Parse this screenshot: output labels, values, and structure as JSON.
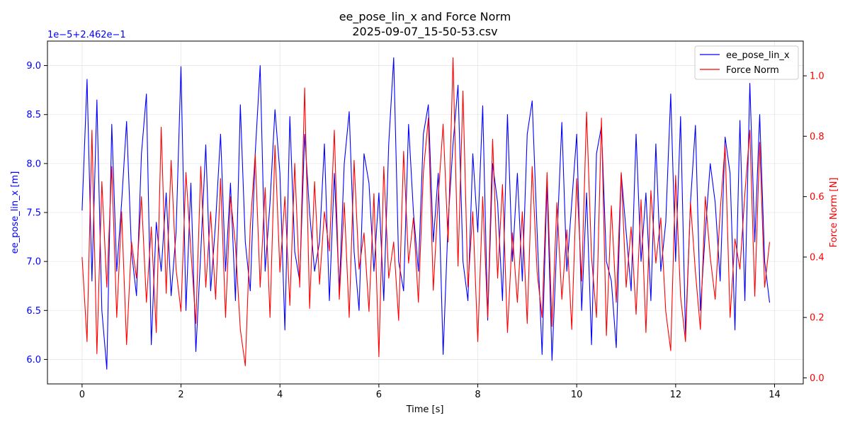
{
  "chart_data": {
    "type": "line",
    "title": "ee_pose_lin_x and Force Norm",
    "subtitle": "2025-09-07_15-50-53.csv",
    "xlabel": "Time [s]",
    "ylabel_left": "ee_pose_lin_x [m]",
    "ylabel_right": "Force Norm [N]",
    "left_axis_offset_text": "1e−5+2.462e−1",
    "xlim": [
      -0.7,
      14.58
    ],
    "ylim_left": [
      5.75,
      9.25
    ],
    "ylim_right": [
      -0.02,
      1.115
    ],
    "x_ticks": [
      0,
      2,
      4,
      6,
      8,
      10,
      12,
      14
    ],
    "x_tick_labels": [
      "0",
      "2",
      "4",
      "6",
      "8",
      "10",
      "12",
      "14"
    ],
    "y_left_ticks": [
      6.0,
      6.5,
      7.0,
      7.5,
      8.0,
      8.5,
      9.0
    ],
    "y_left_tick_labels": [
      "6.0",
      "6.5",
      "7.0",
      "7.5",
      "8.0",
      "8.5",
      "9.0"
    ],
    "y_right_ticks": [
      0.0,
      0.2,
      0.4,
      0.6,
      0.8,
      1.0
    ],
    "y_right_tick_labels": [
      "0.0",
      "0.2",
      "0.4",
      "0.6",
      "0.8",
      "1.0"
    ],
    "grid": true,
    "legend_position": "top-right",
    "series": [
      {
        "name": "ee_pose_lin_x",
        "color": "#0000ff",
        "axis": "left",
        "x": [
          0.0,
          0.1,
          0.2,
          0.3,
          0.4,
          0.5,
          0.6,
          0.7,
          0.8,
          0.9,
          1.0,
          1.1,
          1.2,
          1.3,
          1.4,
          1.5,
          1.6,
          1.7,
          1.8,
          1.9,
          2.0,
          2.1,
          2.2,
          2.3,
          2.4,
          2.5,
          2.6,
          2.7,
          2.8,
          2.9,
          3.0,
          3.1,
          3.2,
          3.3,
          3.4,
          3.5,
          3.6,
          3.7,
          3.8,
          3.9,
          4.0,
          4.1,
          4.2,
          4.3,
          4.4,
          4.5,
          4.6,
          4.7,
          4.8,
          4.9,
          5.0,
          5.1,
          5.2,
          5.3,
          5.4,
          5.5,
          5.6,
          5.7,
          5.8,
          5.9,
          6.0,
          6.1,
          6.2,
          6.3,
          6.4,
          6.5,
          6.6,
          6.7,
          6.8,
          6.9,
          7.0,
          7.1,
          7.2,
          7.3,
          7.4,
          7.5,
          7.6,
          7.7,
          7.8,
          7.9,
          8.0,
          8.1,
          8.2,
          8.3,
          8.4,
          8.5,
          8.6,
          8.7,
          8.8,
          8.9,
          9.0,
          9.1,
          9.2,
          9.3,
          9.4,
          9.5,
          9.6,
          9.7,
          9.8,
          9.9,
          10.0,
          10.1,
          10.2,
          10.3,
          10.4,
          10.5,
          10.6,
          10.7,
          10.8,
          10.9,
          11.0,
          11.1,
          11.2,
          11.3,
          11.4,
          11.5,
          11.6,
          11.7,
          11.8,
          11.9,
          12.0,
          12.1,
          12.2,
          12.3,
          12.4,
          12.5,
          12.6,
          12.7,
          12.8,
          12.9,
          13.0,
          13.1,
          13.2,
          13.3,
          13.4,
          13.5,
          13.6,
          13.7,
          13.8,
          13.9
        ],
        "y": [
          7.52,
          8.86,
          6.8,
          8.65,
          6.5,
          5.9,
          8.4,
          6.9,
          7.6,
          8.43,
          7.1,
          6.65,
          8.1,
          8.71,
          6.15,
          7.4,
          6.9,
          7.7,
          6.65,
          7.3,
          8.99,
          6.5,
          7.8,
          6.08,
          7.1,
          8.19,
          6.7,
          7.4,
          8.3,
          6.9,
          7.8,
          6.6,
          8.6,
          7.2,
          6.7,
          8.1,
          9.0,
          6.9,
          7.6,
          8.55,
          7.9,
          6.3,
          8.48,
          7.1,
          6.8,
          8.3,
          7.5,
          6.9,
          7.2,
          8.2,
          6.6,
          7.9,
          6.7,
          8.0,
          8.53,
          7.1,
          6.5,
          8.1,
          7.8,
          6.9,
          7.7,
          6.6,
          8.2,
          9.08,
          7.0,
          6.7,
          8.4,
          7.5,
          6.9,
          8.3,
          8.6,
          7.2,
          7.9,
          6.05,
          7.4,
          8.2,
          8.8,
          7.0,
          6.6,
          8.1,
          7.3,
          8.59,
          6.4,
          8.0,
          7.6,
          6.6,
          8.5,
          7.0,
          7.9,
          6.8,
          8.3,
          8.64,
          7.3,
          6.05,
          7.8,
          5.99,
          7.2,
          8.42,
          6.9,
          7.6,
          8.3,
          6.5,
          7.7,
          6.15,
          8.1,
          8.38,
          7.0,
          6.8,
          6.12,
          7.9,
          7.3,
          6.7,
          8.3,
          7.0,
          7.7,
          6.6,
          8.2,
          6.9,
          7.4,
          8.71,
          7.0,
          8.48,
          6.25,
          7.6,
          8.39,
          6.5,
          7.3,
          8.0,
          7.6,
          6.8,
          8.27,
          7.9,
          6.3,
          8.44,
          6.6,
          8.82,
          7.2,
          8.5,
          7.0,
          6.58
        ]
      },
      {
        "name": "Force Norm",
        "color": "#ff0000",
        "axis": "right",
        "x": [
          0.0,
          0.1,
          0.2,
          0.3,
          0.4,
          0.5,
          0.6,
          0.7,
          0.8,
          0.9,
          1.0,
          1.1,
          1.2,
          1.3,
          1.4,
          1.5,
          1.6,
          1.7,
          1.8,
          1.9,
          2.0,
          2.1,
          2.2,
          2.3,
          2.4,
          2.5,
          2.6,
          2.7,
          2.8,
          2.9,
          3.0,
          3.1,
          3.2,
          3.3,
          3.4,
          3.5,
          3.6,
          3.7,
          3.8,
          3.9,
          4.0,
          4.1,
          4.2,
          4.3,
          4.4,
          4.5,
          4.6,
          4.7,
          4.8,
          4.9,
          5.0,
          5.1,
          5.2,
          5.3,
          5.4,
          5.5,
          5.6,
          5.7,
          5.8,
          5.9,
          6.0,
          6.1,
          6.2,
          6.3,
          6.4,
          6.5,
          6.6,
          6.7,
          6.8,
          6.9,
          7.0,
          7.1,
          7.2,
          7.3,
          7.4,
          7.5,
          7.6,
          7.7,
          7.8,
          7.9,
          8.0,
          8.1,
          8.2,
          8.3,
          8.4,
          8.5,
          8.6,
          8.7,
          8.8,
          8.9,
          9.0,
          9.1,
          9.2,
          9.3,
          9.4,
          9.5,
          9.6,
          9.7,
          9.8,
          9.9,
          10.0,
          10.1,
          10.2,
          10.3,
          10.4,
          10.5,
          10.6,
          10.7,
          10.8,
          10.9,
          11.0,
          11.1,
          11.2,
          11.3,
          11.4,
          11.5,
          11.6,
          11.7,
          11.8,
          11.9,
          12.0,
          12.1,
          12.2,
          12.3,
          12.4,
          12.5,
          12.6,
          12.7,
          12.8,
          12.9,
          13.0,
          13.1,
          13.2,
          13.3,
          13.4,
          13.5,
          13.6,
          13.7,
          13.8,
          13.9
        ],
        "y": [
          0.4,
          0.12,
          0.82,
          0.08,
          0.65,
          0.3,
          0.7,
          0.2,
          0.55,
          0.11,
          0.45,
          0.33,
          0.6,
          0.25,
          0.5,
          0.15,
          0.83,
          0.28,
          0.72,
          0.36,
          0.22,
          0.68,
          0.42,
          0.18,
          0.7,
          0.3,
          0.55,
          0.26,
          0.66,
          0.2,
          0.6,
          0.44,
          0.16,
          0.04,
          0.5,
          0.74,
          0.3,
          0.63,
          0.2,
          0.77,
          0.35,
          0.6,
          0.24,
          0.71,
          0.3,
          0.96,
          0.23,
          0.65,
          0.31,
          0.55,
          0.42,
          0.82,
          0.26,
          0.58,
          0.2,
          0.72,
          0.36,
          0.48,
          0.22,
          0.61,
          0.07,
          0.7,
          0.33,
          0.45,
          0.19,
          0.75,
          0.38,
          0.53,
          0.25,
          0.68,
          0.86,
          0.29,
          0.6,
          0.84,
          0.45,
          1.06,
          0.37,
          0.95,
          0.3,
          0.55,
          0.12,
          0.6,
          0.2,
          0.79,
          0.33,
          0.64,
          0.15,
          0.48,
          0.25,
          0.55,
          0.18,
          0.7,
          0.35,
          0.2,
          0.68,
          0.17,
          0.58,
          0.26,
          0.49,
          0.16,
          0.66,
          0.32,
          0.88,
          0.4,
          0.2,
          0.86,
          0.14,
          0.57,
          0.25,
          0.68,
          0.3,
          0.5,
          0.21,
          0.59,
          0.15,
          0.62,
          0.38,
          0.53,
          0.22,
          0.09,
          0.67,
          0.27,
          0.12,
          0.58,
          0.35,
          0.16,
          0.6,
          0.4,
          0.26,
          0.55,
          0.77,
          0.2,
          0.46,
          0.36,
          0.61,
          0.82,
          0.27,
          0.78,
          0.3,
          0.45
        ]
      }
    ]
  }
}
